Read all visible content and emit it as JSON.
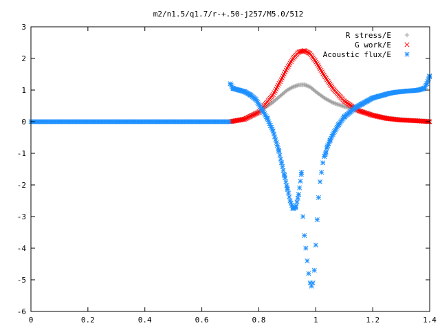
{
  "chart_data": {
    "type": "scatter",
    "title": "m2/n1.5/q1.7/r-+.50-j257/M5.0/512",
    "xlabel": "",
    "ylabel": "",
    "xlim": [
      0,
      1.4
    ],
    "ylim": [
      -6,
      3
    ],
    "x_ticks": [
      "0",
      "0.2",
      "0.4",
      "0.6",
      "0.8",
      "1",
      "1.2",
      "1.4"
    ],
    "y_ticks": [
      "3",
      "2",
      "1",
      "0",
      "-1",
      "-2",
      "-3",
      "-4",
      "-5",
      "-6"
    ],
    "grid": false,
    "legend_position": "top-right",
    "series": [
      {
        "name": "R stress/E",
        "marker": "+",
        "color": "#a0a0a0",
        "x": [
          0.7,
          0.75,
          0.8,
          0.85,
          0.88,
          0.9,
          0.92,
          0.94,
          0.96,
          0.98,
          1.0,
          1.03,
          1.06,
          1.1,
          1.15,
          1.2,
          1.25,
          1.3,
          1.35,
          1.4
        ],
        "y": [
          0.0,
          0.1,
          0.3,
          0.62,
          0.85,
          1.0,
          1.1,
          1.16,
          1.17,
          1.1,
          0.95,
          0.75,
          0.6,
          0.48,
          0.35,
          0.22,
          0.12,
          0.07,
          0.04,
          0.02
        ]
      },
      {
        "name": "G work/E",
        "marker": "x",
        "color": "#ff0000",
        "x": [
          0.7,
          0.75,
          0.8,
          0.85,
          0.88,
          0.9,
          0.92,
          0.94,
          0.96,
          0.98,
          1.0,
          1.03,
          1.06,
          1.1,
          1.15,
          1.2,
          1.25,
          1.3,
          1.35,
          1.4
        ],
        "y": [
          0.0,
          0.08,
          0.3,
          0.85,
          1.35,
          1.7,
          2.0,
          2.2,
          2.25,
          2.15,
          1.9,
          1.45,
          1.05,
          0.65,
          0.35,
          0.2,
          0.1,
          0.05,
          0.03,
          0.0
        ]
      },
      {
        "name": "Acoustic flux/E",
        "marker": "*",
        "color": "#1e90ff",
        "x": [
          0.7,
          0.71,
          0.73,
          0.75,
          0.77,
          0.79,
          0.81,
          0.83,
          0.85,
          0.87,
          0.88,
          0.89,
          0.9,
          0.91,
          0.92,
          0.93,
          0.94,
          0.95,
          0.955,
          0.96,
          0.965,
          0.97,
          0.975,
          0.98,
          0.985,
          0.99,
          0.995,
          1.0,
          1.005,
          1.01,
          1.015,
          1.02,
          1.025,
          1.03,
          1.035,
          1.04,
          1.05,
          1.06,
          1.08,
          1.1,
          1.12,
          1.14,
          1.16,
          1.18,
          1.2,
          1.22,
          1.24,
          1.26,
          1.28,
          1.3,
          1.32,
          1.34,
          1.36,
          1.38,
          1.39,
          1.4
        ],
        "y": [
          1.2,
          1.05,
          1.0,
          0.95,
          0.85,
          0.7,
          0.4,
          0.1,
          -0.3,
          -0.9,
          -1.3,
          -1.7,
          -2.1,
          -2.5,
          -2.75,
          -2.7,
          -2.3,
          -1.6,
          -3.0,
          -3.6,
          -4.0,
          -4.4,
          -4.8,
          -5.1,
          -5.2,
          -5.1,
          -4.7,
          -3.9,
          -3.1,
          -2.4,
          -1.9,
          -1.6,
          -1.3,
          -1.1,
          -1.0,
          -0.8,
          -0.6,
          -0.4,
          -0.1,
          0.15,
          0.3,
          0.45,
          0.55,
          0.65,
          0.75,
          0.8,
          0.85,
          0.9,
          0.93,
          0.95,
          0.97,
          0.98,
          1.0,
          1.05,
          1.2,
          1.45
        ]
      }
    ]
  }
}
